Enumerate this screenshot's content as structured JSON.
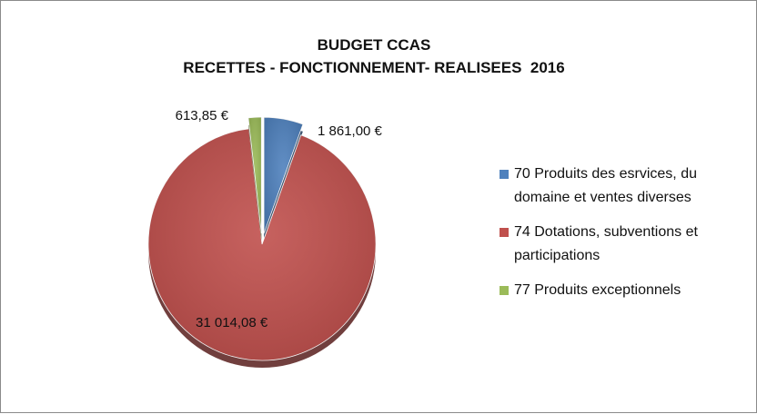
{
  "chart_data": {
    "type": "pie",
    "title": [
      "BUDGET CCAS",
      "RECETTES - FONCTIONNEMENT- REALISEES  2016"
    ],
    "slices": [
      {
        "label": "70 Produits des esrvices, du domaine et ventes diverses",
        "value": 1861.0,
        "display": "1 861,00 €",
        "color": "#4f81bd",
        "exploded": true
      },
      {
        "label": "74 Dotations, subventions et participations",
        "value": 31014.08,
        "display": "31 014,08 €",
        "color": "#c0504d",
        "exploded": false
      },
      {
        "label": "77 Produits exceptionnels",
        "value": 613.85,
        "display": "613,85 €",
        "color": "#9bbb59",
        "exploded": true
      }
    ],
    "legend_position": "right"
  }
}
